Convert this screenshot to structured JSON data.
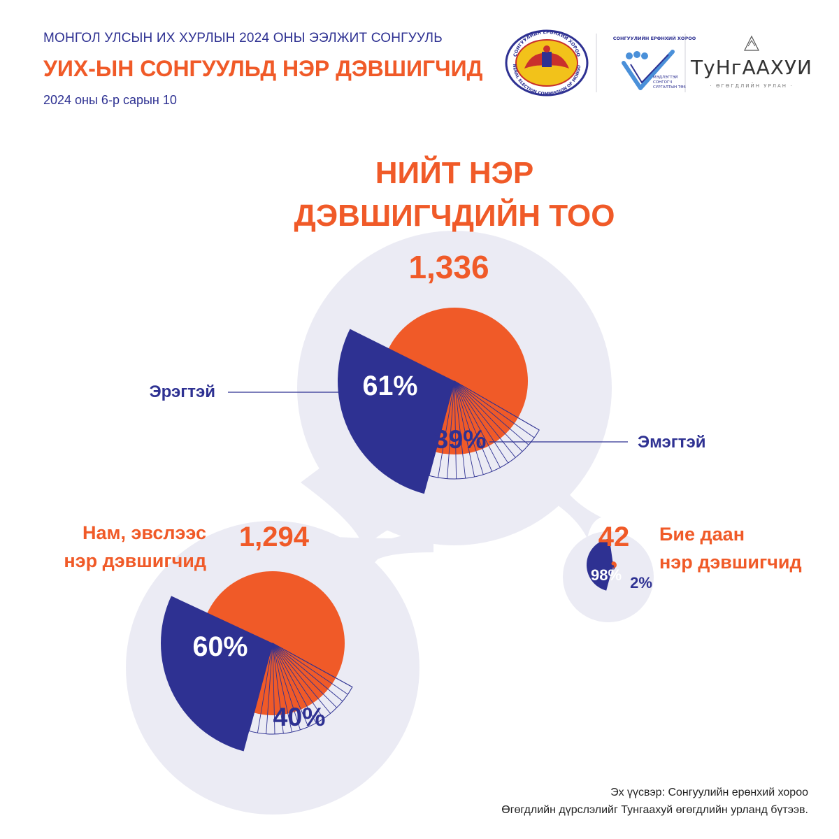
{
  "header": {
    "supertitle": "МОНГОЛ УЛСЫН ИХ ХУРЛЫН 2024 ОНЫ ЭЭЛЖИТ СОНГУУЛЬ",
    "title": "УИХ-ЫН СОНГУУЛЬД НЭР ДЭВШИГЧИД",
    "date": "2024 оны 6-р сарын 10"
  },
  "logos": {
    "gec_ring_top": "СОНГУУЛИЙН ЕРӨНХИЙ ХОРОО",
    "gec_ring_bottom": "GENERAL ELECTION COMMISSION OF MONGOLIA",
    "voter_edu_title": "СОНГУУЛИЙН ЕРӨНХИЙ ХОРОО",
    "voter_edu_sub1": "МЭДЛЭГТЭЙ",
    "voter_edu_sub2": "СОНГОГЧ",
    "voter_edu_sub3": "СУРГАЛТЫН ТӨВ",
    "tungaakhui_name": "ТуНгААХУИ",
    "tungaakhui_tagline": "· ӨГӨГДЛИЙН УРЛАН ·"
  },
  "colors": {
    "male": "#2e3192",
    "female": "#f05a28",
    "blob": "#ebebf4",
    "accent_text": "#f05a28",
    "dark_text": "#2e3192"
  },
  "chart_data": [
    {
      "type": "pie",
      "title": "НИЙТ НЭР ДЭВШИГЧДИЙН ТОО",
      "title_line1": "НИЙТ НЭР",
      "title_line2": "ДЭВШИГЧДИЙН ТОО",
      "total_label": "1,336",
      "total": 1336,
      "categories": [
        "Эрэгтэй",
        "Эмэгтэй"
      ],
      "values": [
        61,
        39
      ],
      "value_labels": [
        "61%",
        "39%"
      ]
    },
    {
      "type": "pie",
      "title_line1": "Нам, эвслээс",
      "title_line2": "нэр дэвшигчид",
      "total_label": "1,294",
      "total": 1294,
      "categories": [
        "Эрэгтэй",
        "Эмэгтэй"
      ],
      "values": [
        60,
        40
      ],
      "value_labels": [
        "60%",
        "40%"
      ]
    },
    {
      "type": "pie",
      "title_line1": "Бие даан",
      "title_line2": "нэр дэвшигчид",
      "total_label": "42",
      "total": 42,
      "categories": [
        "Эрэгтэй",
        "Эмэгтэй"
      ],
      "values": [
        98,
        2
      ],
      "value_labels": [
        "98%",
        "2%"
      ]
    }
  ],
  "labels": {
    "male": "Эрэгтэй",
    "female": "Эмэгтэй"
  },
  "source": {
    "line1": "Эх үүсвэр: Сонгуулийн ерөнхий хороо",
    "line2": "Өгөгдлийн дүрслэлийг Тунгаахуй өгөгдлийн урланд бүтээв."
  }
}
